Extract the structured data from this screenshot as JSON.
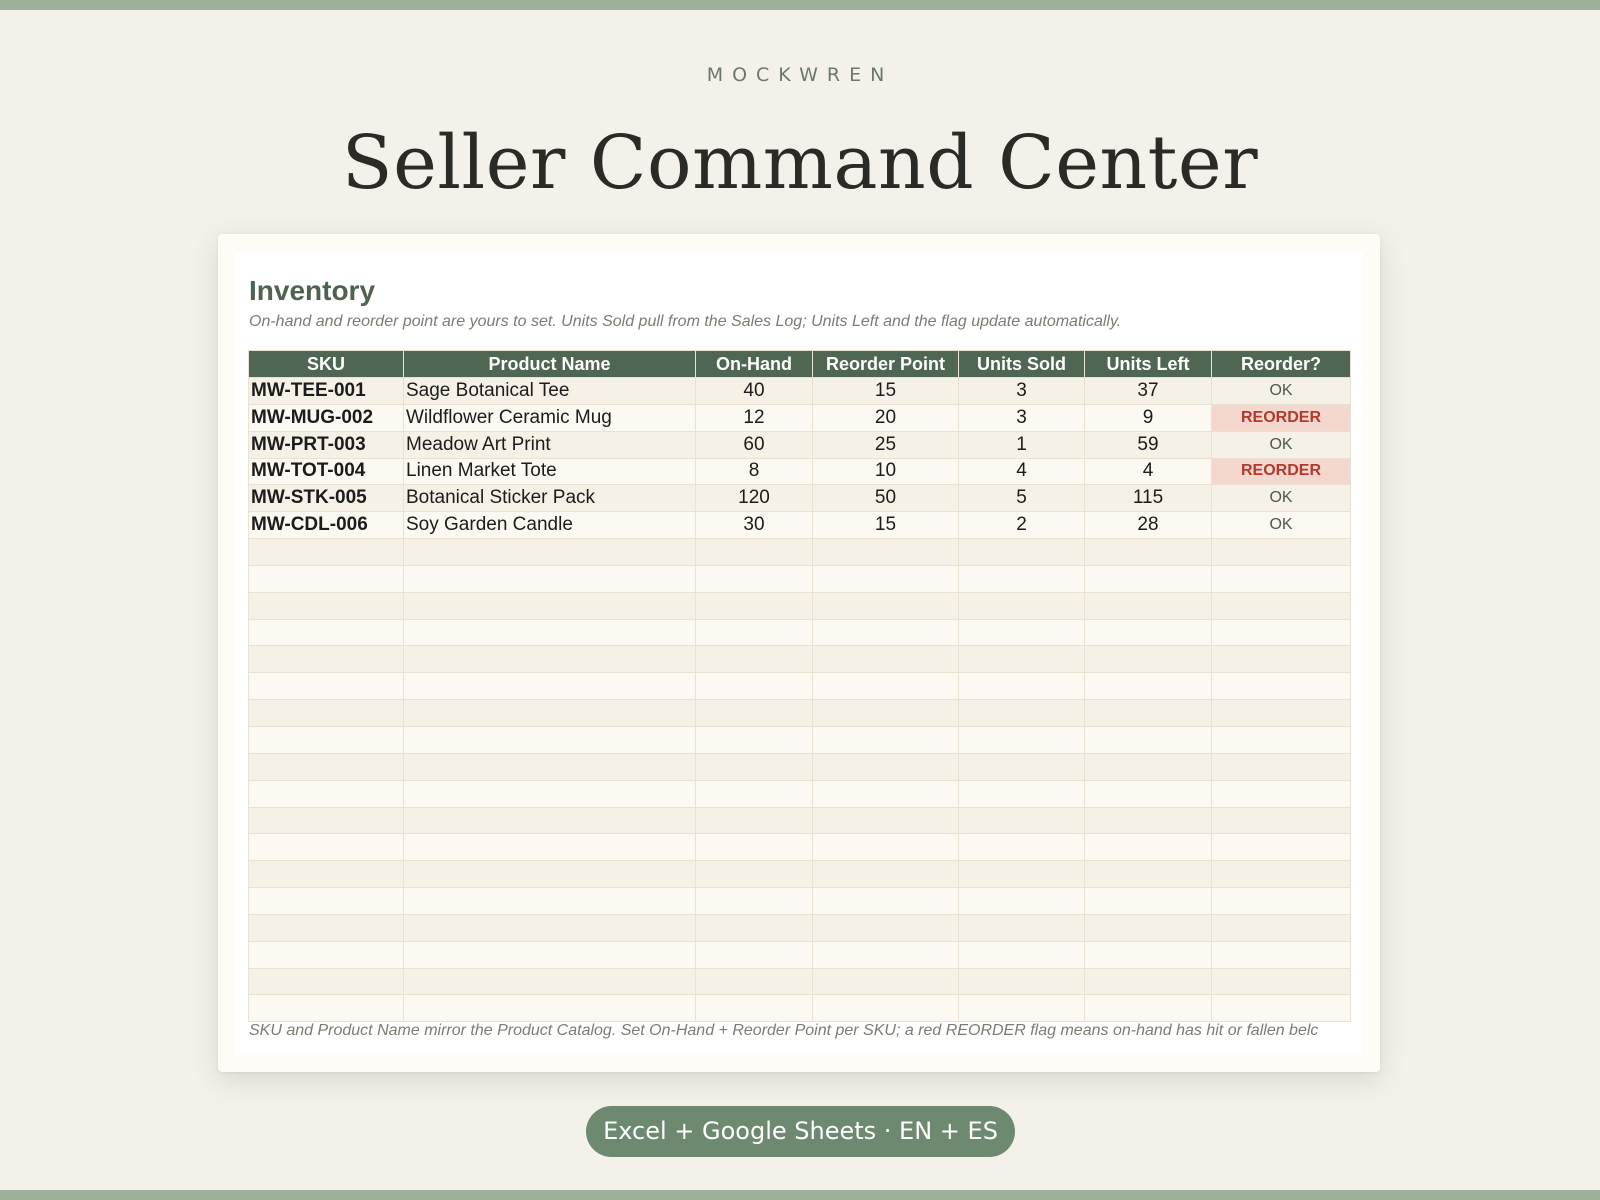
{
  "brand": "MOCKWREN",
  "page_title": "Seller Command Center",
  "sheet": {
    "title": "Inventory",
    "subtitle": "On-hand and reorder point are yours to set. Units Sold pull from the Sales Log; Units Left and the flag update automatically.",
    "columns": [
      "SKU",
      "Product Name",
      "On-Hand",
      "Reorder Point",
      "Units Sold",
      "Units Left",
      "Reorder?"
    ],
    "rows": [
      {
        "sku": "MW-TEE-001",
        "name": "Sage Botanical Tee",
        "on_hand": "40",
        "reorder_point": "15",
        "units_sold": "3",
        "units_left": "37",
        "flag": "OK"
      },
      {
        "sku": "MW-MUG-002",
        "name": "Wildflower Ceramic Mug",
        "on_hand": "12",
        "reorder_point": "20",
        "units_sold": "3",
        "units_left": "9",
        "flag": "REORDER"
      },
      {
        "sku": "MW-PRT-003",
        "name": "Meadow Art Print",
        "on_hand": "60",
        "reorder_point": "25",
        "units_sold": "1",
        "units_left": "59",
        "flag": "OK"
      },
      {
        "sku": "MW-TOT-004",
        "name": "Linen Market Tote",
        "on_hand": "8",
        "reorder_point": "10",
        "units_sold": "4",
        "units_left": "4",
        "flag": "REORDER"
      },
      {
        "sku": "MW-STK-005",
        "name": "Botanical Sticker Pack",
        "on_hand": "120",
        "reorder_point": "50",
        "units_sold": "5",
        "units_left": "115",
        "flag": "OK"
      },
      {
        "sku": "MW-CDL-006",
        "name": "Soy Garden Candle",
        "on_hand": "30",
        "reorder_point": "15",
        "units_sold": "2",
        "units_left": "28",
        "flag": "OK"
      }
    ],
    "footnote": "SKU and Product Name mirror the Product Catalog. Set On-Hand + Reorder Point per SKU; a red REORDER flag means on-hand has hit or fallen belc"
  },
  "badge": "Excel + Google Sheets · EN + ES",
  "colors": {
    "header_bg": "#4f6652",
    "alert_text": "#b33a2c",
    "alert_bg": "#f4d8d0",
    "band": "#9db19a",
    "pill_bg": "#6d8a70"
  }
}
